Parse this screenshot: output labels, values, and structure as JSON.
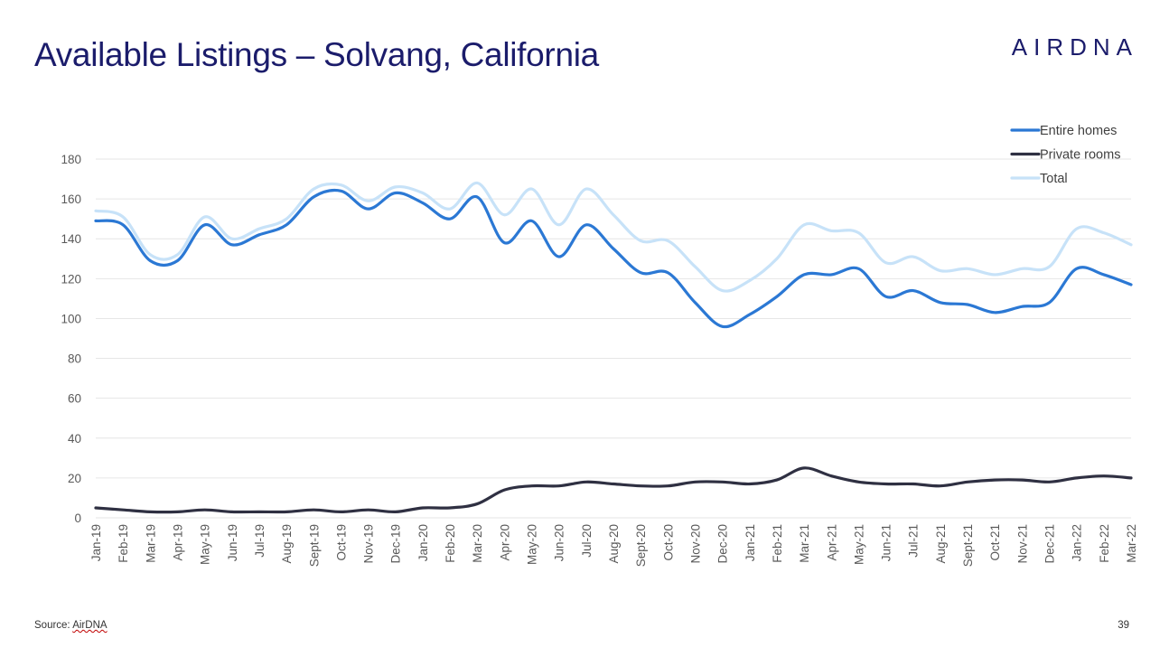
{
  "slide": {
    "title": "Available Listings – Solvang, California",
    "logo_text": "AIRDNA",
    "source_prefix": "Source: ",
    "source_name": "AirDNA",
    "page_number": "39"
  },
  "colors": {
    "entire_homes": "#2b78d4",
    "private_rooms": "#2f3042",
    "total": "#c7e2f8",
    "title": "#1b1c6b",
    "grid": "#e6e6e6"
  },
  "chart_data": {
    "type": "line",
    "title": "",
    "xlabel": "",
    "ylabel": "",
    "ylim": [
      0,
      180
    ],
    "yticks": [
      0,
      20,
      40,
      60,
      80,
      100,
      120,
      140,
      160,
      180
    ],
    "grid": true,
    "legend_position": "top-right",
    "x": [
      "Jan-19",
      "Feb-19",
      "Mar-19",
      "Apr-19",
      "May-19",
      "Jun-19",
      "Jul-19",
      "Aug-19",
      "Sept-19",
      "Oct-19",
      "Nov-19",
      "Dec-19",
      "Jan-20",
      "Feb-20",
      "Mar-20",
      "Apr-20",
      "May-20",
      "Jun-20",
      "Jul-20",
      "Aug-20",
      "Sept-20",
      "Oct-20",
      "Nov-20",
      "Dec-20",
      "Jan-21",
      "Feb-21",
      "Mar-21",
      "Apr-21",
      "May-21",
      "Jun-21",
      "Jul-21",
      "Aug-21",
      "Sept-21",
      "Oct-21",
      "Nov-21",
      "Dec-21",
      "Jan-22",
      "Feb-22",
      "Mar-22"
    ],
    "series": [
      {
        "name": "Entire homes",
        "color_key": "entire_homes",
        "values": [
          149,
          147,
          129,
          129,
          147,
          137,
          142,
          147,
          161,
          164,
          155,
          163,
          158,
          150,
          161,
          138,
          149,
          131,
          147,
          135,
          123,
          123,
          108,
          96,
          102,
          111,
          122,
          122,
          125,
          111,
          114,
          108,
          107,
          103,
          106,
          108,
          125,
          122,
          117
        ]
      },
      {
        "name": "Private rooms",
        "color_key": "private_rooms",
        "values": [
          5,
          4,
          3,
          3,
          4,
          3,
          3,
          3,
          4,
          3,
          4,
          3,
          5,
          5,
          7,
          14,
          16,
          16,
          18,
          17,
          16,
          16,
          18,
          18,
          17,
          19,
          25,
          21,
          18,
          17,
          17,
          16,
          18,
          19,
          19,
          18,
          20,
          21,
          20
        ]
      },
      {
        "name": "Total",
        "color_key": "total",
        "values": [
          154,
          151,
          132,
          132,
          151,
          140,
          145,
          150,
          165,
          167,
          159,
          166,
          163,
          155,
          168,
          152,
          165,
          147,
          165,
          152,
          139,
          139,
          126,
          114,
          119,
          130,
          147,
          144,
          143,
          128,
          131,
          124,
          125,
          122,
          125,
          126,
          145,
          143,
          137
        ]
      }
    ]
  }
}
